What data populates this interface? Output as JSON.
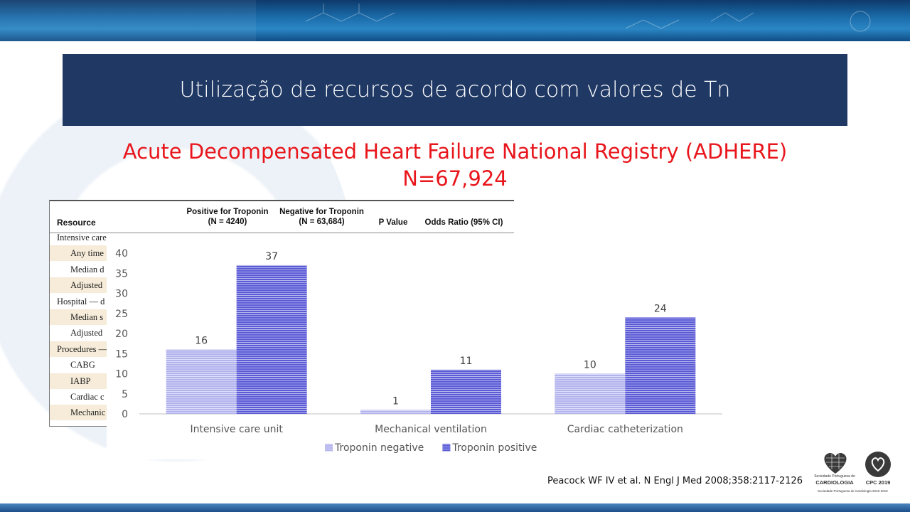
{
  "slide": {
    "title": "Utilização de recursos de acordo com valores de Tn",
    "subtitle_line1": "Acute Decompensated Heart Failure National Registry (ADHERE)",
    "subtitle_line2": "N=67,924",
    "citation": "Peacock WF IV et al. N Engl J Med 2008;358:2117-2126",
    "colors": {
      "title_bg": "#1f3864",
      "subtitle": "#e8161c",
      "troponin_negative": "#b3b3ee",
      "troponin_positive": "#5b5bd6"
    }
  },
  "table": {
    "headers": {
      "resource": "Resource",
      "positive": "Positive for Troponin",
      "positive_n": "(N = 4240)",
      "negative": "Negative for Troponin",
      "negative_n": "(N = 63,684)",
      "p_value": "P Value",
      "odds_ratio": "Odds Ratio (95% CI)"
    },
    "rows": [
      {
        "label": "Intensive care",
        "indent": false,
        "shade": false
      },
      {
        "label": "Any time",
        "indent": true,
        "shade": true
      },
      {
        "label": "Median d",
        "indent": true,
        "shade": false
      },
      {
        "label": "Adjusted",
        "indent": true,
        "shade": true
      },
      {
        "label": "Hospital — d",
        "indent": false,
        "shade": false
      },
      {
        "label": "Median s",
        "indent": true,
        "shade": true
      },
      {
        "label": "Adjusted",
        "indent": true,
        "shade": false
      },
      {
        "label": "Procedures —",
        "indent": false,
        "shade": true
      },
      {
        "label": "CABG",
        "indent": true,
        "shade": false
      },
      {
        "label": "IABP",
        "indent": true,
        "shade": true
      },
      {
        "label": "Cardiac c",
        "indent": true,
        "shade": false
      },
      {
        "label": "Mechanic",
        "indent": true,
        "shade": true
      }
    ]
  },
  "logos": {
    "spc_line1": "Sociedade Portuguesa de",
    "spc_line2": "CARDIOLOGIA",
    "spc_line3": "Sociedade Portuguesa de Cardiologia 2018-2019",
    "cpc_label": "CPC 2019"
  },
  "chart_data": {
    "type": "bar",
    "categories": [
      "Intensive care unit",
      "Mechanical ventilation",
      "Cardiac catheterization"
    ],
    "series": [
      {
        "name": "Troponin negative",
        "values": [
          16,
          1,
          10
        ],
        "color": "#b3b3ee"
      },
      {
        "name": "Troponin positive",
        "values": [
          37,
          11,
          24
        ],
        "color": "#5b5bd6"
      }
    ],
    "ylim": [
      0,
      40
    ],
    "yticks": [
      0,
      5,
      10,
      15,
      20,
      25,
      30,
      35,
      40
    ],
    "grid": false,
    "legend": "bottom"
  }
}
